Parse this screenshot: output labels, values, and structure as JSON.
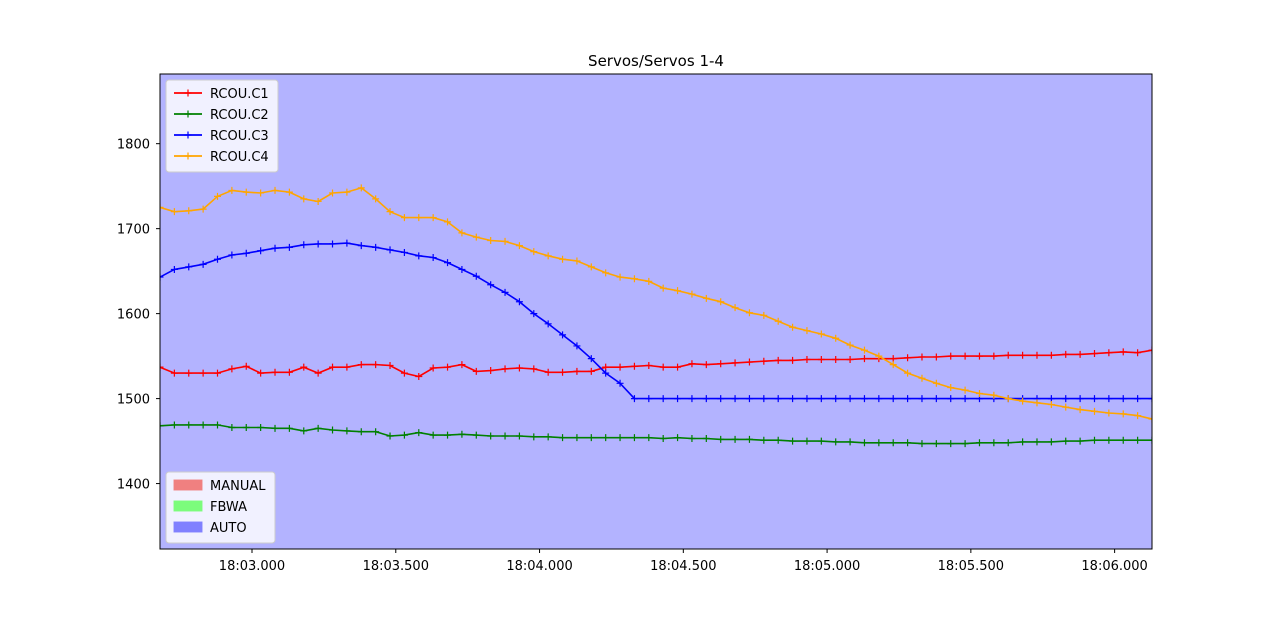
{
  "chart_data": {
    "type": "line",
    "title": "Servos/Servos 1-4",
    "xlabel": "",
    "ylabel": "",
    "x_unit": "seconds after 18:00:00",
    "xlim": [
      182.68,
      186.13
    ],
    "ylim": [
      1323,
      1882
    ],
    "x_ticks": [
      183.0,
      183.5,
      184.0,
      184.5,
      185.0,
      185.5,
      186.0
    ],
    "x_tick_labels": [
      "18:03.000",
      "18:03.500",
      "18:04.000",
      "18:04.500",
      "18:05.000",
      "18:05.500",
      "18:06.000"
    ],
    "y_ticks": [
      1400,
      1500,
      1600,
      1700,
      1800
    ],
    "y_tick_labels": [
      "1400",
      "1500",
      "1600",
      "1700",
      "1800"
    ],
    "grid": false,
    "background_color": "#b3b3ff",
    "series": [
      {
        "name": "RCOU.C1",
        "color": "#ff0000",
        "x": [
          182.68,
          182.73,
          182.78,
          182.83,
          182.88,
          182.93,
          182.98,
          183.03,
          183.08,
          183.13,
          183.18,
          183.23,
          183.28,
          183.33,
          183.38,
          183.43,
          183.48,
          183.53,
          183.58,
          183.63,
          183.68,
          183.73,
          183.78,
          183.83,
          183.88,
          183.93,
          183.98,
          184.03,
          184.08,
          184.13,
          184.18,
          184.23,
          184.28,
          184.33,
          184.38,
          184.43,
          184.48,
          184.53,
          184.58,
          184.63,
          184.68,
          184.73,
          184.78,
          184.83,
          184.88,
          184.93,
          184.98,
          185.03,
          185.08,
          185.13,
          185.18,
          185.23,
          185.28,
          185.33,
          185.38,
          185.43,
          185.48,
          185.53,
          185.58,
          185.63,
          185.68,
          185.73,
          185.78,
          185.83,
          185.88,
          185.93,
          185.98,
          186.03,
          186.08,
          186.13
        ],
        "y": [
          1537,
          1530,
          1530,
          1530,
          1530,
          1535,
          1538,
          1530,
          1531,
          1531,
          1537,
          1530,
          1537,
          1537,
          1540,
          1540,
          1539,
          1530,
          1526,
          1536,
          1537,
          1540,
          1532,
          1533,
          1535,
          1536,
          1535,
          1531,
          1531,
          1532,
          1532,
          1537,
          1537,
          1538,
          1539,
          1537,
          1537,
          1541,
          1540,
          1541,
          1542,
          1543,
          1544,
          1545,
          1545,
          1546,
          1546,
          1546,
          1546,
          1547,
          1547,
          1547,
          1548,
          1549,
          1549,
          1550,
          1550,
          1550,
          1550,
          1551,
          1551,
          1551,
          1551,
          1552,
          1552,
          1553,
          1554,
          1555,
          1554,
          1557
        ]
      },
      {
        "name": "RCOU.C2",
        "color": "#008000",
        "x": [
          182.68,
          182.73,
          182.78,
          182.83,
          182.88,
          182.93,
          182.98,
          183.03,
          183.08,
          183.13,
          183.18,
          183.23,
          183.28,
          183.33,
          183.38,
          183.43,
          183.48,
          183.53,
          183.58,
          183.63,
          183.68,
          183.73,
          183.78,
          183.83,
          183.88,
          183.93,
          183.98,
          184.03,
          184.08,
          184.13,
          184.18,
          184.23,
          184.28,
          184.33,
          184.38,
          184.43,
          184.48,
          184.53,
          184.58,
          184.63,
          184.68,
          184.73,
          184.78,
          184.83,
          184.88,
          184.93,
          184.98,
          185.03,
          185.08,
          185.13,
          185.18,
          185.23,
          185.28,
          185.33,
          185.38,
          185.43,
          185.48,
          185.53,
          185.58,
          185.63,
          185.68,
          185.73,
          185.78,
          185.83,
          185.88,
          185.93,
          185.98,
          186.03,
          186.08,
          186.13
        ],
        "y": [
          1468,
          1469,
          1469,
          1469,
          1469,
          1466,
          1466,
          1466,
          1465,
          1465,
          1462,
          1465,
          1463,
          1462,
          1461,
          1461,
          1456,
          1457,
          1460,
          1457,
          1457,
          1458,
          1457,
          1456,
          1456,
          1456,
          1455,
          1455,
          1454,
          1454,
          1454,
          1454,
          1454,
          1454,
          1454,
          1453,
          1454,
          1453,
          1453,
          1452,
          1452,
          1452,
          1451,
          1451,
          1450,
          1450,
          1450,
          1449,
          1449,
          1448,
          1448,
          1448,
          1448,
          1447,
          1447,
          1447,
          1447,
          1448,
          1448,
          1448,
          1449,
          1449,
          1449,
          1450,
          1450,
          1451,
          1451,
          1451,
          1451,
          1451
        ]
      },
      {
        "name": "RCOU.C3",
        "color": "#0000ff",
        "x": [
          182.68,
          182.73,
          182.78,
          182.83,
          182.88,
          182.93,
          182.98,
          183.03,
          183.08,
          183.13,
          183.18,
          183.23,
          183.28,
          183.33,
          183.38,
          183.43,
          183.48,
          183.53,
          183.58,
          183.63,
          183.68,
          183.73,
          183.78,
          183.83,
          183.88,
          183.93,
          183.98,
          184.03,
          184.08,
          184.13,
          184.18,
          184.23,
          184.28,
          184.33,
          184.38,
          184.43,
          184.48,
          184.53,
          184.58,
          184.63,
          184.68,
          184.73,
          184.78,
          184.83,
          184.88,
          184.93,
          184.98,
          185.03,
          185.08,
          185.13,
          185.18,
          185.23,
          185.28,
          185.33,
          185.38,
          185.43,
          185.48,
          185.53,
          185.58,
          185.63,
          185.68,
          185.73,
          185.78,
          185.83,
          185.88,
          185.93,
          185.98,
          186.03,
          186.08,
          186.13
        ],
        "y": [
          1643,
          1652,
          1655,
          1658,
          1664,
          1669,
          1671,
          1674,
          1677,
          1678,
          1681,
          1682,
          1682,
          1683,
          1680,
          1678,
          1675,
          1672,
          1668,
          1666,
          1660,
          1652,
          1644,
          1634,
          1625,
          1614,
          1600,
          1588,
          1575,
          1562,
          1547,
          1530,
          1518,
          1500,
          1500,
          1500,
          1500,
          1500,
          1500,
          1500,
          1500,
          1500,
          1500,
          1500,
          1500,
          1500,
          1500,
          1500,
          1500,
          1500,
          1500,
          1500,
          1500,
          1500,
          1500,
          1500,
          1500,
          1500,
          1500,
          1500,
          1500,
          1500,
          1500,
          1500,
          1500,
          1500,
          1500,
          1500,
          1500,
          1500
        ]
      },
      {
        "name": "RCOU.C4",
        "color": "#ffa500",
        "x": [
          182.68,
          182.73,
          182.78,
          182.83,
          182.88,
          182.93,
          182.98,
          183.03,
          183.08,
          183.13,
          183.18,
          183.23,
          183.28,
          183.33,
          183.38,
          183.43,
          183.48,
          183.53,
          183.58,
          183.63,
          183.68,
          183.73,
          183.78,
          183.83,
          183.88,
          183.93,
          183.98,
          184.03,
          184.08,
          184.13,
          184.18,
          184.23,
          184.28,
          184.33,
          184.38,
          184.43,
          184.48,
          184.53,
          184.58,
          184.63,
          184.68,
          184.73,
          184.78,
          184.83,
          184.88,
          184.93,
          184.98,
          185.03,
          185.08,
          185.13,
          185.18,
          185.23,
          185.28,
          185.33,
          185.38,
          185.43,
          185.48,
          185.53,
          185.58,
          185.63,
          185.68,
          185.73,
          185.78,
          185.83,
          185.88,
          185.93,
          185.98,
          186.03,
          186.08,
          186.13
        ],
        "y": [
          1725,
          1720,
          1721,
          1723,
          1738,
          1745,
          1743,
          1742,
          1745,
          1743,
          1735,
          1732,
          1742,
          1743,
          1748,
          1735,
          1720,
          1713,
          1713,
          1713,
          1708,
          1695,
          1690,
          1686,
          1685,
          1680,
          1673,
          1668,
          1664,
          1662,
          1655,
          1648,
          1643,
          1641,
          1638,
          1630,
          1627,
          1623,
          1618,
          1614,
          1607,
          1601,
          1598,
          1591,
          1584,
          1580,
          1576,
          1571,
          1563,
          1557,
          1550,
          1540,
          1530,
          1524,
          1518,
          1513,
          1510,
          1506,
          1504,
          1500,
          1497,
          1495,
          1493,
          1490,
          1487,
          1485,
          1483,
          1482,
          1480,
          1476
        ]
      }
    ],
    "legend_series_position": "upper-left",
    "legend_modes_position": "lower-left",
    "legend_modes": [
      {
        "label": "MANUAL",
        "color": "#f08080"
      },
      {
        "label": "FBWA",
        "color": "#7cfc7c"
      },
      {
        "label": "AUTO",
        "color": "#8080ff"
      }
    ]
  }
}
